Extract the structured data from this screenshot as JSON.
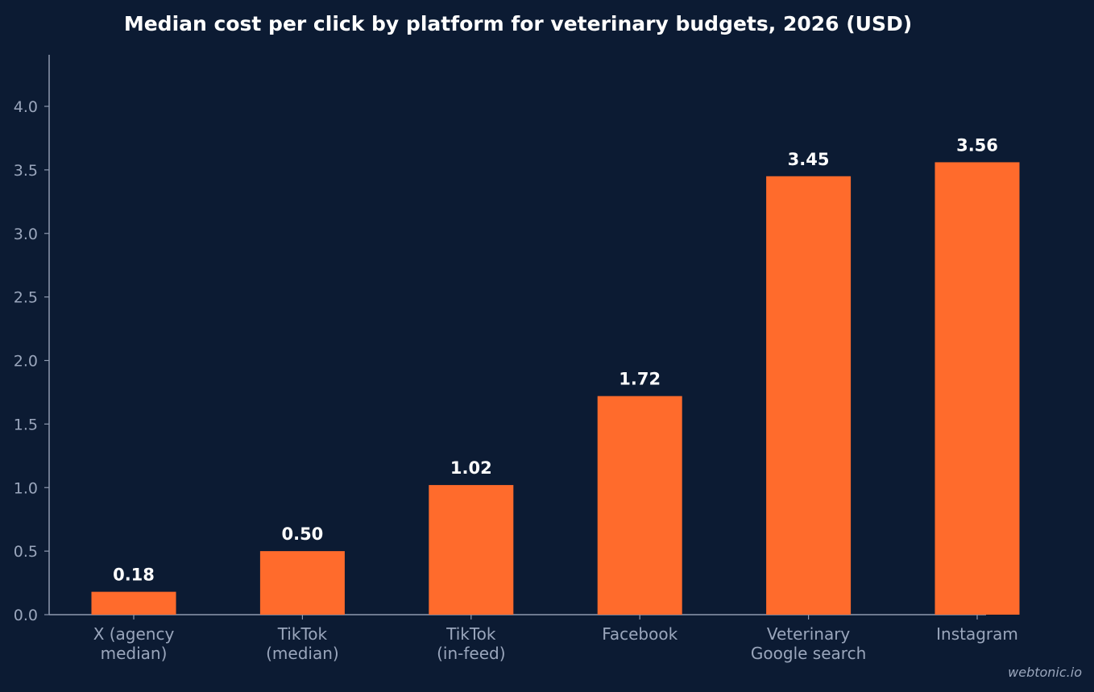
{
  "chart_data": {
    "type": "bar",
    "title": "Median cost per click by platform for veterinary budgets, 2026 (USD)",
    "categories": [
      [
        "X (agency",
        "median)"
      ],
      [
        "TikTok",
        "(median)"
      ],
      [
        "TikTok",
        "(in-feed)"
      ],
      [
        "Facebook"
      ],
      [
        "Veterinary",
        "Google search"
      ],
      [
        "Instagram"
      ]
    ],
    "values": [
      0.18,
      0.5,
      1.02,
      1.72,
      3.45,
      3.56
    ],
    "value_labels": [
      "0.18",
      "0.50",
      "1.02",
      "1.72",
      "3.45",
      "3.56"
    ],
    "yticks": [
      0.0,
      0.5,
      1.0,
      1.5,
      2.0,
      2.5,
      3.0,
      3.5,
      4.0
    ],
    "ytick_labels": [
      "0.0",
      "0.5",
      "1.0",
      "1.5",
      "2.0",
      "2.5",
      "3.0",
      "3.5",
      "4.0"
    ],
    "xlabel": "",
    "ylabel": "",
    "ylim": [
      0,
      4.4
    ],
    "grid": false,
    "legend": "none",
    "colors": {
      "bar": "#ff6b2c",
      "background": "#0c1b33"
    }
  },
  "watermark": "webtonic.io"
}
